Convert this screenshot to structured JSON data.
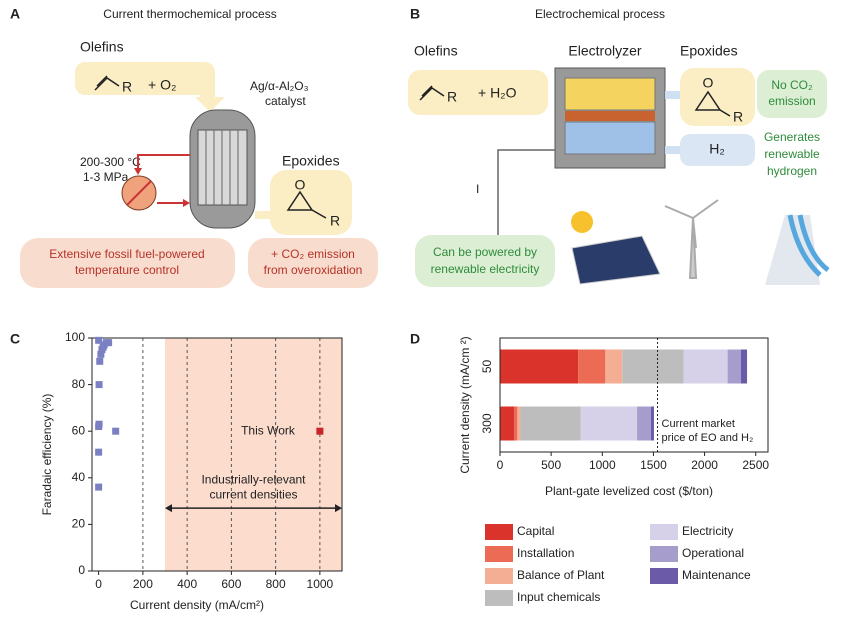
{
  "panel_a": {
    "label": "A",
    "title": "Current thermochemical process",
    "reactant_label": "Olefins",
    "reactant_r": "R",
    "reactant_plus": "+ O₂",
    "catalyst": [
      "Ag/α-Al₂O₃",
      "catalyst"
    ],
    "conditions": [
      "200-300 °C",
      "1-3 MPa"
    ],
    "product_label": "Epoxides",
    "product_o": "O",
    "product_r": "R",
    "note_left": [
      "Extensive fossil fuel-powered",
      "temperature control"
    ],
    "note_right": [
      "+ CO₂ emission",
      "from overoxidation"
    ]
  },
  "panel_b": {
    "label": "B",
    "title": "Electrochemical process",
    "reactant_label": "Olefins",
    "reactant_r": "R",
    "reactant_plus": "+ H₂O",
    "electrolyzer": "Electrolyzer",
    "product_label": "Epoxides",
    "product_o": "O",
    "product_r": "R",
    "no_co2": [
      "No CO₂",
      "emission"
    ],
    "h2": "H₂",
    "hydrogen_note": [
      "Generates",
      "renewable",
      "hydrogen"
    ],
    "current": "I",
    "power_note": [
      "Can be powered by",
      "renewable electricity"
    ]
  },
  "chart_data": [
    {
      "type": "scatter",
      "panel_label": "C",
      "xlabel": "Current density (mA/cm²)",
      "ylabel": "Faradaic efficiency (%)",
      "xlim": [
        -30,
        1100
      ],
      "ylim": [
        0,
        100
      ],
      "xticks": [
        0,
        200,
        400,
        600,
        800,
        1000
      ],
      "yticks": [
        0,
        20,
        40,
        60,
        80,
        100
      ],
      "grid": "x",
      "region": {
        "x": [
          300,
          1100
        ],
        "color": "#fbdccd",
        "label": [
          "Industrially-relevant",
          "current densities"
        ]
      },
      "series": [
        {
          "color": "#7b80c2",
          "x": [
            0,
            0,
            0,
            2,
            2,
            5,
            10,
            15,
            20,
            25,
            35,
            45,
            0,
            77
          ],
          "values": [
            36,
            51,
            62,
            63,
            80,
            90,
            93,
            95,
            96,
            97,
            98,
            98,
            99,
            60
          ]
        },
        {
          "color": "#c8262a",
          "x": [
            1000
          ],
          "values": [
            60
          ],
          "annotation": "This Work"
        }
      ]
    },
    {
      "type": "stacked-barh",
      "panel_label": "D",
      "xlabel": "Plant-gate levelized cost ($/ton)",
      "ylabel": "Current density (mA/cm ²)",
      "categories": [
        "50",
        "300"
      ],
      "xlim": [
        0,
        2620
      ],
      "xticks": [
        0,
        500,
        1000,
        1500,
        2000,
        2500
      ],
      "legend": "bottom",
      "reference": {
        "value": 1540,
        "label": [
          "Current market",
          "price of EO and H₂"
        ]
      },
      "series": [
        {
          "name": "Capital",
          "color": "#d9332b",
          "values": [
            765,
            140
          ]
        },
        {
          "name": "Installation",
          "color": "#ec6b55",
          "values": [
            265,
            30
          ]
        },
        {
          "name": "Balance of Plant",
          "color": "#f4ae94",
          "values": [
            165,
            30
          ]
        },
        {
          "name": "Input chemicals",
          "color": "#bdbdbd",
          "values": [
            600,
            590
          ]
        },
        {
          "name": "Electricity",
          "color": "#d6d0e8",
          "values": [
            430,
            550
          ]
        },
        {
          "name": "Operational",
          "color": "#a79dcc",
          "values": [
            130,
            135
          ]
        },
        {
          "name": "Maintenance",
          "color": "#6a5aa8",
          "values": [
            60,
            30
          ]
        }
      ]
    }
  ]
}
